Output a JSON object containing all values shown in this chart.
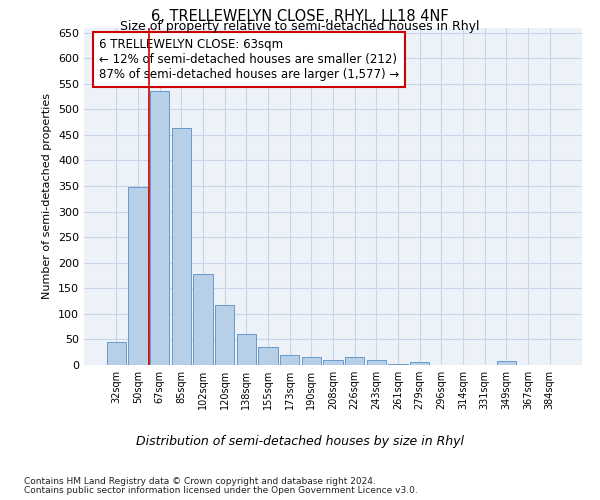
{
  "title": "6, TRELLEWELYN CLOSE, RHYL, LL18 4NF",
  "subtitle": "Size of property relative to semi-detached houses in Rhyl",
  "xlabel": "Distribution of semi-detached houses by size in Rhyl",
  "ylabel": "Number of semi-detached properties",
  "categories": [
    "32sqm",
    "50sqm",
    "67sqm",
    "85sqm",
    "102sqm",
    "120sqm",
    "138sqm",
    "155sqm",
    "173sqm",
    "190sqm",
    "208sqm",
    "226sqm",
    "243sqm",
    "261sqm",
    "279sqm",
    "296sqm",
    "314sqm",
    "331sqm",
    "349sqm",
    "367sqm",
    "384sqm"
  ],
  "values": [
    45,
    349,
    535,
    463,
    178,
    118,
    60,
    35,
    20,
    16,
    10,
    15,
    10,
    2,
    6,
    0,
    0,
    0,
    8,
    0,
    0
  ],
  "bar_color": "#b8cfe8",
  "bar_edge_color": "#6699cc",
  "annotation_title": "6 TRELLEWELYN CLOSE: 63sqm",
  "annotation_line1": "← 12% of semi-detached houses are smaller (212)",
  "annotation_line2": "87% of semi-detached houses are larger (1,577) →",
  "annotation_box_color": "#ffffff",
  "annotation_box_edge_color": "#cc0000",
  "vline_color": "#cc0000",
  "vline_x": 1.5,
  "ylim": [
    0,
    660
  ],
  "yticks": [
    0,
    50,
    100,
    150,
    200,
    250,
    300,
    350,
    400,
    450,
    500,
    550,
    600,
    650
  ],
  "grid_color": "#c8d4e8",
  "background_color": "#edf2f9",
  "footer_line1": "Contains HM Land Registry data © Crown copyright and database right 2024.",
  "footer_line2": "Contains public sector information licensed under the Open Government Licence v3.0."
}
